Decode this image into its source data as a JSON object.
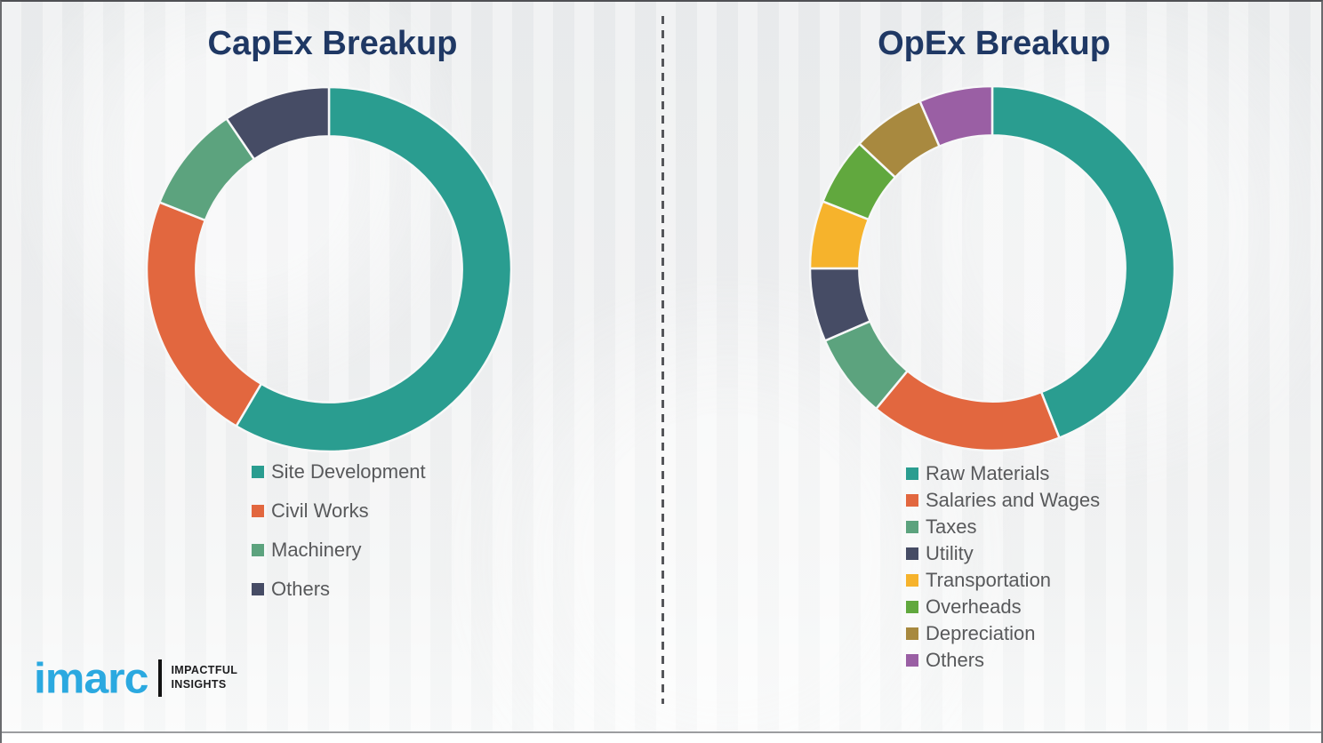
{
  "chart_data": [
    {
      "type": "pie",
      "subtype": "donut",
      "title": "CapEx Breakup",
      "labels": [
        "Site Development",
        "Civil Works",
        "Machinery",
        "Others"
      ],
      "values": [
        58.5,
        22.5,
        9.5,
        9.5
      ],
      "colors": [
        "#2A9D90",
        "#E2673F",
        "#5CA37E",
        "#464C65"
      ],
      "start_angle_deg": 0,
      "direction": "clockwise",
      "donut_hole_ratio": 0.73,
      "legend_position": "below-left"
    },
    {
      "type": "pie",
      "subtype": "donut",
      "title": "OpEx Breakup",
      "labels": [
        "Raw Materials",
        "Salaries and Wages",
        "Taxes",
        "Utility",
        "Transportation",
        "Overheads",
        "Depreciation",
        "Others"
      ],
      "values": [
        44,
        17,
        7.5,
        6.5,
        6,
        6,
        6.5,
        6.5
      ],
      "colors": [
        "#2A9D90",
        "#E2673F",
        "#5CA37E",
        "#464C65",
        "#F6B32C",
        "#61A83E",
        "#A8893F",
        "#9A5FA4"
      ],
      "start_angle_deg": 0,
      "direction": "clockwise",
      "donut_hole_ratio": 0.73,
      "legend_position": "below-left"
    }
  ],
  "branding": {
    "logo_text": "imarc",
    "tagline_line1": "IMPACTFUL",
    "tagline_line2": "INSIGHTS",
    "logo_color": "#2BA9E0"
  },
  "theme": {
    "title_color": "#1F3864",
    "legend_text_color": "#58595B",
    "background_color": "#EFF0F1",
    "divider_color": "#55565A",
    "segment_gap_color": "#F7F8F8"
  }
}
